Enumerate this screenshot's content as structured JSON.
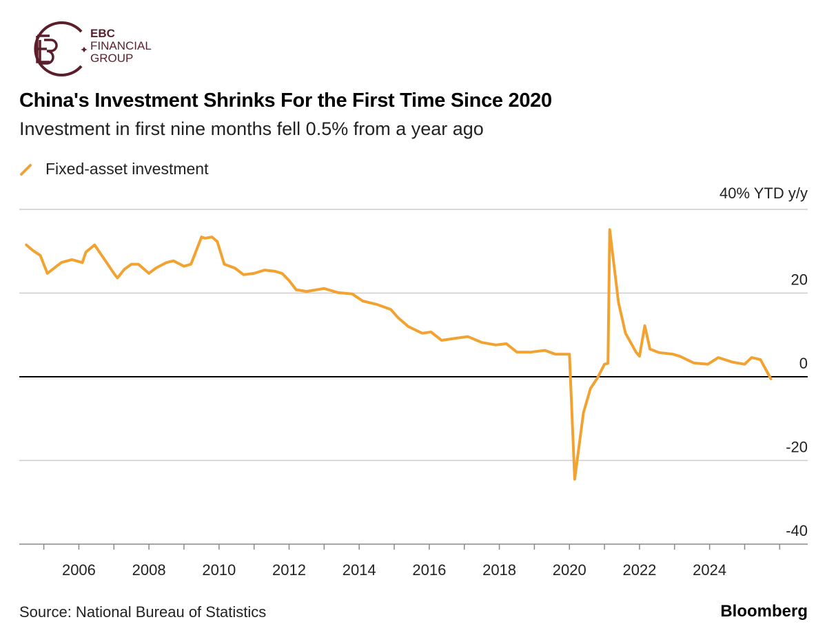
{
  "logo": {
    "line1": "EBC",
    "line2": "FINANCIAL",
    "line3": "GROUP",
    "color": "#5a1f2a"
  },
  "title": "China's Investment Shrinks For the First Time Since 2020",
  "subtitle": "Investment in first nine months fell 0.5% from a year ago",
  "source": "Source: National Bureau of Statistics",
  "brand": "Bloomberg",
  "chart_data": {
    "type": "line",
    "title": "China's Investment Shrinks For the First Time Since 2020",
    "subtitle": "Investment in first nine months fell 0.5% from a year ago",
    "ylabel": "40% YTD y/y",
    "ylim": [
      -40,
      40
    ],
    "yticks": [
      40,
      20,
      0,
      -20,
      -40
    ],
    "ytick_labels": [
      "40% YTD y/y",
      "20",
      "0",
      "-20",
      "-40"
    ],
    "xlim": [
      2004.3,
      2026.8
    ],
    "xticks": [
      2005,
      2006,
      2007,
      2008,
      2009,
      2010,
      2011,
      2012,
      2013,
      2014,
      2015,
      2016,
      2017,
      2018,
      2019,
      2020,
      2021,
      2022,
      2023,
      2024,
      2025,
      2026
    ],
    "xtick_labels": [
      "2006",
      "2008",
      "2010",
      "2012",
      "2014",
      "2016",
      "2018",
      "2020",
      "2022",
      "2024"
    ],
    "grid": true,
    "legend": "top-left",
    "series": [
      {
        "name": "Fixed-asset investment",
        "color": "#f2a230",
        "x": [
          2004.5,
          2004.7,
          2004.9,
          2005.1,
          2005.5,
          2005.8,
          2006.1,
          2006.2,
          2006.45,
          2006.8,
          2007.0,
          2007.1,
          2007.3,
          2007.5,
          2007.7,
          2008.0,
          2008.2,
          2008.5,
          2008.7,
          2009.0,
          2009.2,
          2009.5,
          2009.6,
          2009.8,
          2009.95,
          2010.15,
          2010.45,
          2010.7,
          2011.0,
          2011.3,
          2011.6,
          2011.8,
          2012.0,
          2012.2,
          2012.5,
          2013.0,
          2013.4,
          2013.8,
          2014.1,
          2014.5,
          2014.9,
          2015.1,
          2015.4,
          2015.8,
          2016.05,
          2016.35,
          2016.75,
          2017.1,
          2017.5,
          2017.9,
          2018.2,
          2018.5,
          2018.9,
          2019.3,
          2019.6,
          2019.9,
          2020.0,
          2020.15,
          2020.4,
          2020.6,
          2020.8,
          2021.0,
          2021.1,
          2021.15,
          2021.4,
          2021.6,
          2021.9,
          2022.0,
          2022.15,
          2022.3,
          2022.55,
          2022.95,
          2023.15,
          2023.55,
          2023.95,
          2024.25,
          2024.65,
          2025.0,
          2025.2,
          2025.45,
          2025.75
        ],
        "values": [
          31.5,
          30.1,
          29,
          24.7,
          27.3,
          28,
          27.3,
          29.8,
          31.5,
          27.2,
          24.7,
          23.6,
          25.7,
          26.9,
          26.9,
          24.7,
          26,
          27.3,
          27.7,
          26.4,
          26.9,
          33.4,
          33.1,
          33.4,
          32.3,
          26.9,
          26,
          24.4,
          24.7,
          25.5,
          25.2,
          24.7,
          23,
          20.8,
          20.4,
          21.1,
          20.1,
          19.8,
          18.1,
          17.3,
          16.1,
          14.2,
          12,
          10.4,
          10.7,
          8.7,
          9.2,
          9.6,
          8.2,
          7.6,
          7.9,
          5.9,
          5.9,
          6.3,
          5.4,
          5.4,
          5.4,
          -24.5,
          -8.6,
          -2.8,
          -0.3,
          3.0,
          3.2,
          35.2,
          17.8,
          10.4,
          5.9,
          4.9,
          12.2,
          6.6,
          5.8,
          5.4,
          4.9,
          3.3,
          3.0,
          4.6,
          3.5,
          3.0,
          4.6,
          4.1,
          -0.5
        ]
      }
    ]
  }
}
